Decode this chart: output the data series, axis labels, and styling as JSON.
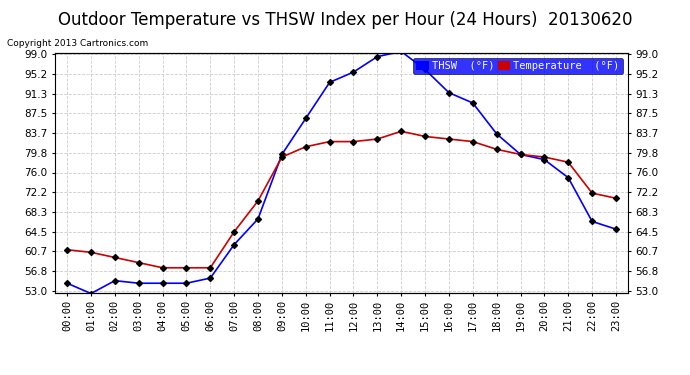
{
  "title": "Outdoor Temperature vs THSW Index per Hour (24 Hours)  20130620",
  "copyright": "Copyright 2013 Cartronics.com",
  "background_color": "#ffffff",
  "grid_color": "#cccccc",
  "hours": [
    0,
    1,
    2,
    3,
    4,
    5,
    6,
    7,
    8,
    9,
    10,
    11,
    12,
    13,
    14,
    15,
    16,
    17,
    18,
    19,
    20,
    21,
    22,
    23
  ],
  "thsw": [
    54.5,
    52.5,
    55.0,
    54.5,
    54.5,
    54.5,
    55.5,
    62.0,
    67.0,
    79.5,
    86.5,
    93.5,
    95.5,
    98.5,
    99.5,
    96.0,
    91.5,
    89.5,
    83.5,
    79.5,
    78.5,
    75.0,
    66.5,
    65.0
  ],
  "temp": [
    61.0,
    60.5,
    59.5,
    58.5,
    57.5,
    57.5,
    57.5,
    64.5,
    70.5,
    79.0,
    81.0,
    82.0,
    82.0,
    82.5,
    84.0,
    83.0,
    82.5,
    82.0,
    80.5,
    79.5,
    79.0,
    78.0,
    72.0,
    71.0
  ],
  "thsw_color": "#0000ff",
  "temp_color": "#cc0000",
  "marker": "D",
  "marker_size": 3.0,
  "ylim_min": 53.0,
  "ylim_max": 99.0,
  "ytick_step": 3.8,
  "yticks": [
    53.0,
    56.8,
    60.7,
    64.5,
    68.3,
    72.2,
    76.0,
    79.8,
    83.7,
    87.5,
    91.3,
    95.2,
    99.0
  ],
  "title_fontsize": 12,
  "tick_fontsize": 7.5,
  "legend_thsw": "THSW  (°F)",
  "legend_temp": "Temperature  (°F)"
}
